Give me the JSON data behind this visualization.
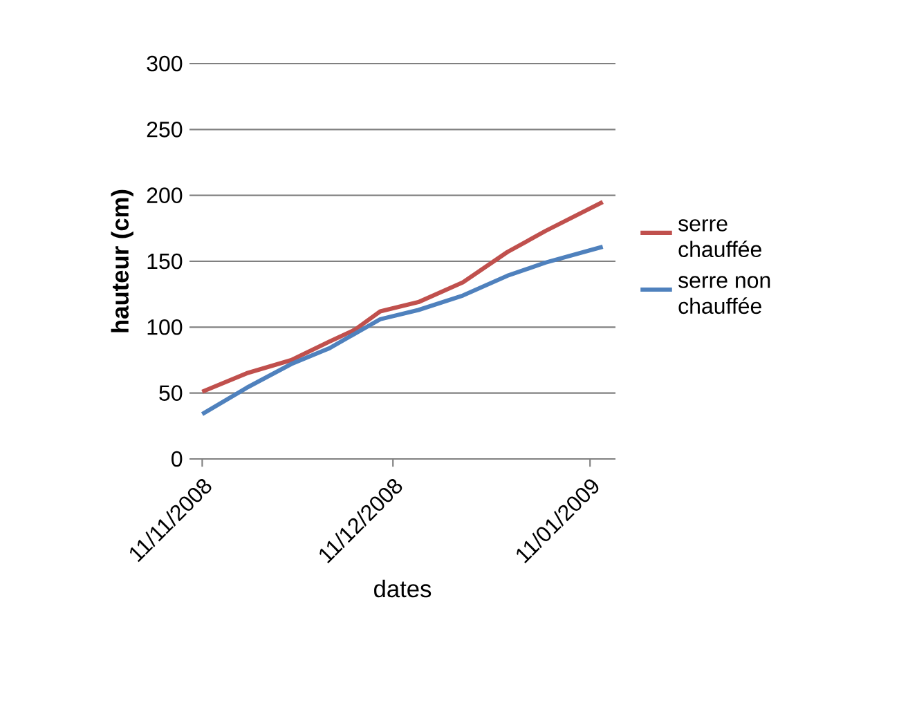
{
  "chart_data": {
    "type": "line",
    "xlabel": "dates",
    "ylabel": "hauteur (cm)",
    "x": [
      "2008-11-11",
      "2008-11-18",
      "2008-11-25",
      "2008-12-01",
      "2008-12-05",
      "2008-12-09",
      "2008-12-15",
      "2008-12-22",
      "2008-12-29",
      "2009-01-04",
      "2009-01-13"
    ],
    "series": [
      {
        "name": "serre chauffée",
        "color": "#c0504d",
        "values": [
          51,
          65,
          75,
          89,
          98,
          112,
          119,
          134,
          157,
          173,
          195
        ]
      },
      {
        "name": "serre non chauffée",
        "color": "#4f81bd",
        "values": [
          34,
          54,
          72,
          84,
          95,
          106,
          113,
          124,
          139,
          149,
          161
        ]
      }
    ],
    "xlim": [
      "2008-11-09",
      "2009-01-15"
    ],
    "xticks": [
      {
        "value": "2008-11-11",
        "label": "11/11/2008"
      },
      {
        "value": "2008-12-11",
        "label": "11/12/2008"
      },
      {
        "value": "2009-01-11",
        "label": "11/01/2009"
      }
    ],
    "ylim": [
      0,
      300
    ],
    "yticks": [
      0,
      50,
      100,
      150,
      200,
      250,
      300
    ],
    "grid": "y",
    "legend": "right"
  }
}
